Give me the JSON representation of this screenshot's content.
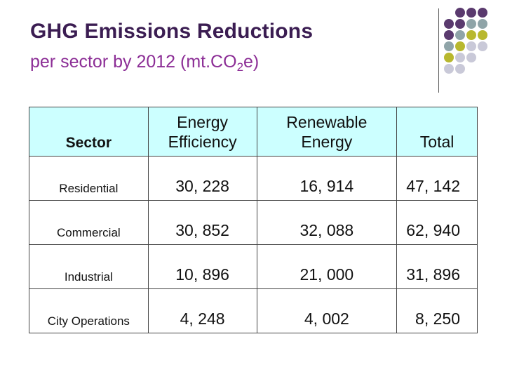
{
  "slide": {
    "title": "GHG Emissions Reductions",
    "subtitle_main": "per sector by 2012 (mt.CO",
    "subtitle_sub": "2",
    "subtitle_end": "e)"
  },
  "decoration": {
    "dot_colors": [
      [
        "#ffffff",
        "#5a3a6e",
        "#5a3a6e",
        "#5a3a6e"
      ],
      [
        "#5a3a6e",
        "#5a3a6e",
        "#8fa4a8",
        "#8fa4a8"
      ],
      [
        "#5a3a6e",
        "#8fa4a8",
        "#b8b82e",
        "#b8b82e"
      ],
      [
        "#8fa4a8",
        "#b8b82e",
        "#c9c9d8",
        "#c9c9d8"
      ],
      [
        "#b8b82e",
        "#c9c9d8",
        "#c9c9d8",
        "#ffffff"
      ],
      [
        "#c9c9d8",
        "#c9c9d8",
        "#ffffff",
        "#ffffff"
      ]
    ]
  },
  "table": {
    "headers": {
      "sector": "Sector",
      "ee_line1": "Energy",
      "ee_line2": "Efficiency",
      "re_line1": "Renewable",
      "re_line2": "Energy",
      "total": "Total"
    },
    "rows": [
      {
        "sector": "Residential",
        "energy_efficiency": "30, 228",
        "renewable_energy": "16, 914",
        "total": "47, 142"
      },
      {
        "sector": "Commercial",
        "energy_efficiency": "30, 852",
        "renewable_energy": "32, 088",
        "total": "62, 940"
      },
      {
        "sector": "Industrial",
        "energy_efficiency": "10, 896",
        "renewable_energy": "21, 000",
        "total": "31, 896"
      },
      {
        "sector": "City Operations",
        "energy_efficiency": "4, 248",
        "renewable_energy": "4, 002",
        "total": "8, 250"
      }
    ]
  }
}
